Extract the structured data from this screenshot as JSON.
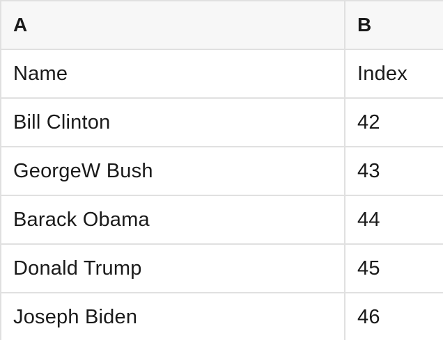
{
  "table": {
    "columns": [
      {
        "label": "A"
      },
      {
        "label": "B"
      }
    ],
    "rows": [
      [
        "Name",
        "Index"
      ],
      [
        "Bill Clinton",
        "42"
      ],
      [
        "GeorgeW Bush",
        "43"
      ],
      [
        "Barack Obama",
        "44"
      ],
      [
        "Donald Trump",
        "45"
      ],
      [
        "Joseph Biden",
        "46"
      ]
    ],
    "colors": {
      "header_bg": "#f7f7f7",
      "grid_line": "#e0e0e0",
      "text": "#1a1a1a",
      "background": "#ffffff"
    }
  }
}
